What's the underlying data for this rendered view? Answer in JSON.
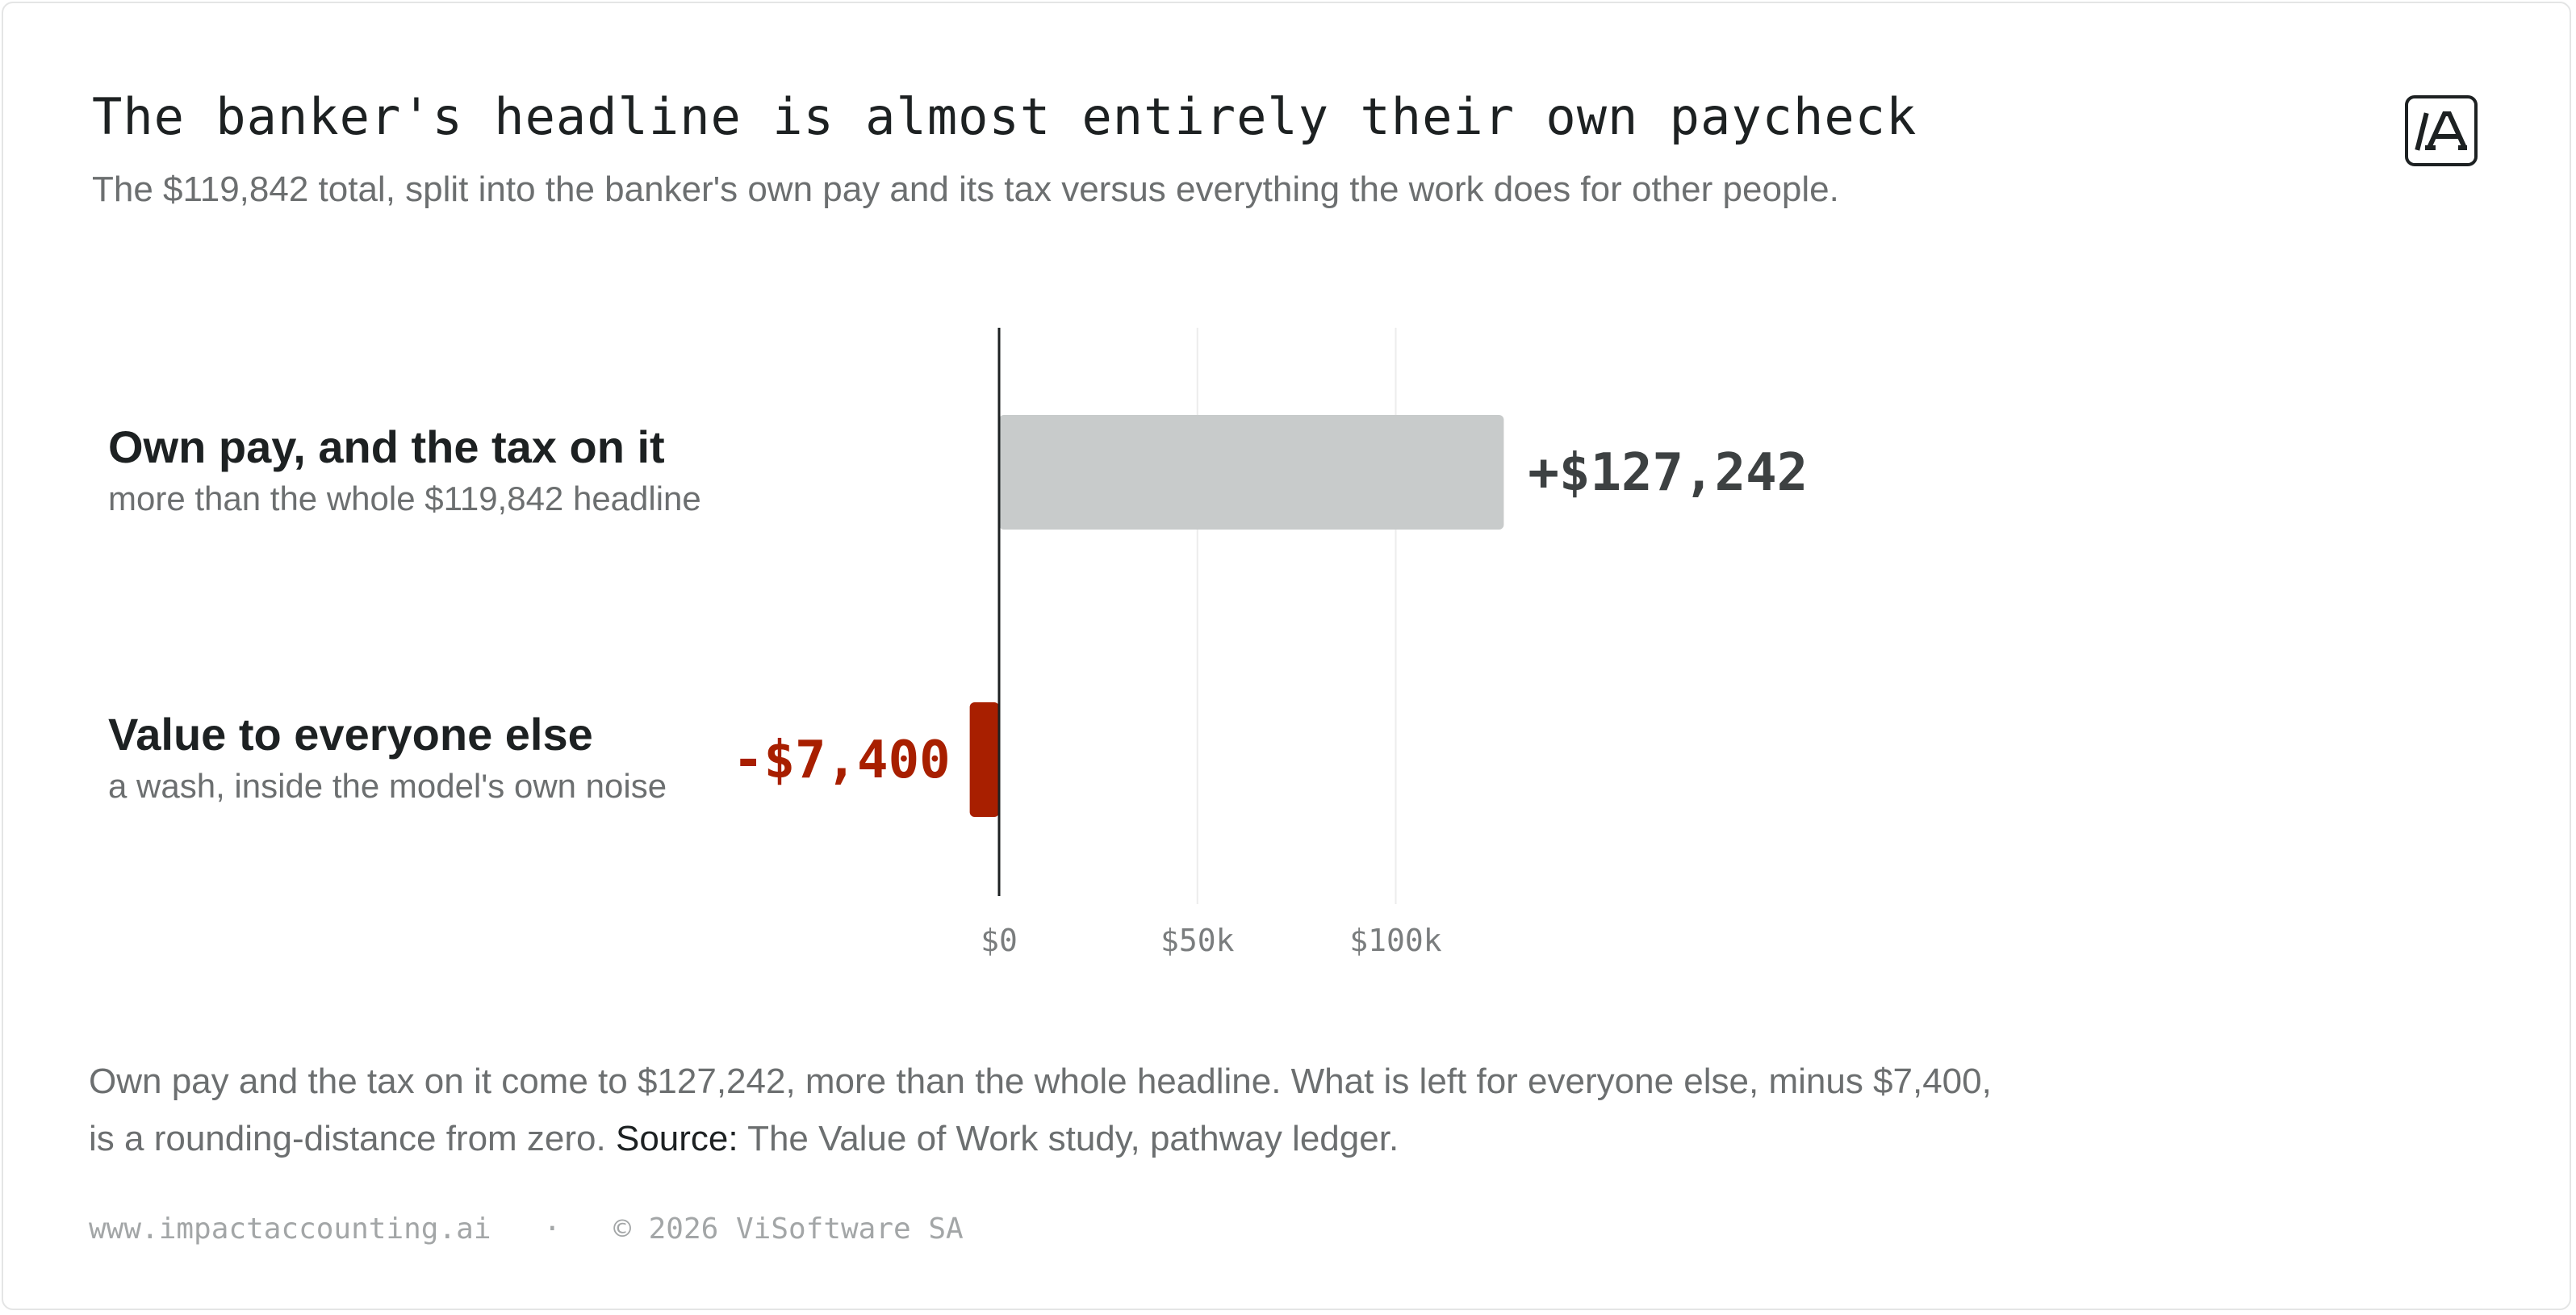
{
  "header": {
    "title": "The banker's headline is almost entirely their own paycheck",
    "subtitle": "The $119,842 total, split into the banker's own pay and its tax versus everything the work does for other people."
  },
  "logo": {
    "icon": "slash-a-logo-icon",
    "text": "/A"
  },
  "chart_data": {
    "type": "bar",
    "orientation": "horizontal",
    "categories": [
      {
        "title": "Own pay, and the tax on it",
        "subtitle": "more than the whole $119,842 headline",
        "value": 127242,
        "value_label": "+$127,242",
        "color": "#c8cbcb",
        "label_color": "#3d4142"
      },
      {
        "title": "Value to everyone else",
        "subtitle": "a wash, inside the model's own noise",
        "value": -7400,
        "value_label": "-$7,400",
        "color": "#a81f00",
        "label_color": "#a81f00"
      }
    ],
    "xlim": [
      -15000,
      165000
    ],
    "ticks": [
      {
        "value": 0,
        "label": "$0"
      },
      {
        "value": 50000,
        "label": "$50k"
      },
      {
        "value": 100000,
        "label": "$100k"
      }
    ],
    "grid": true,
    "zero_line": true
  },
  "note": {
    "text": "Own pay and the tax on it come to $127,242, more than the whole headline. What is left for everyone else, minus $7,400, is a rounding-distance from zero.",
    "source_label": "Source:",
    "source_text": "The Value of Work study, pathway ledger."
  },
  "footer": {
    "url": "www.impactaccounting.ai",
    "separator": "·",
    "copyright": "© 2026 ViSoftware SA"
  }
}
